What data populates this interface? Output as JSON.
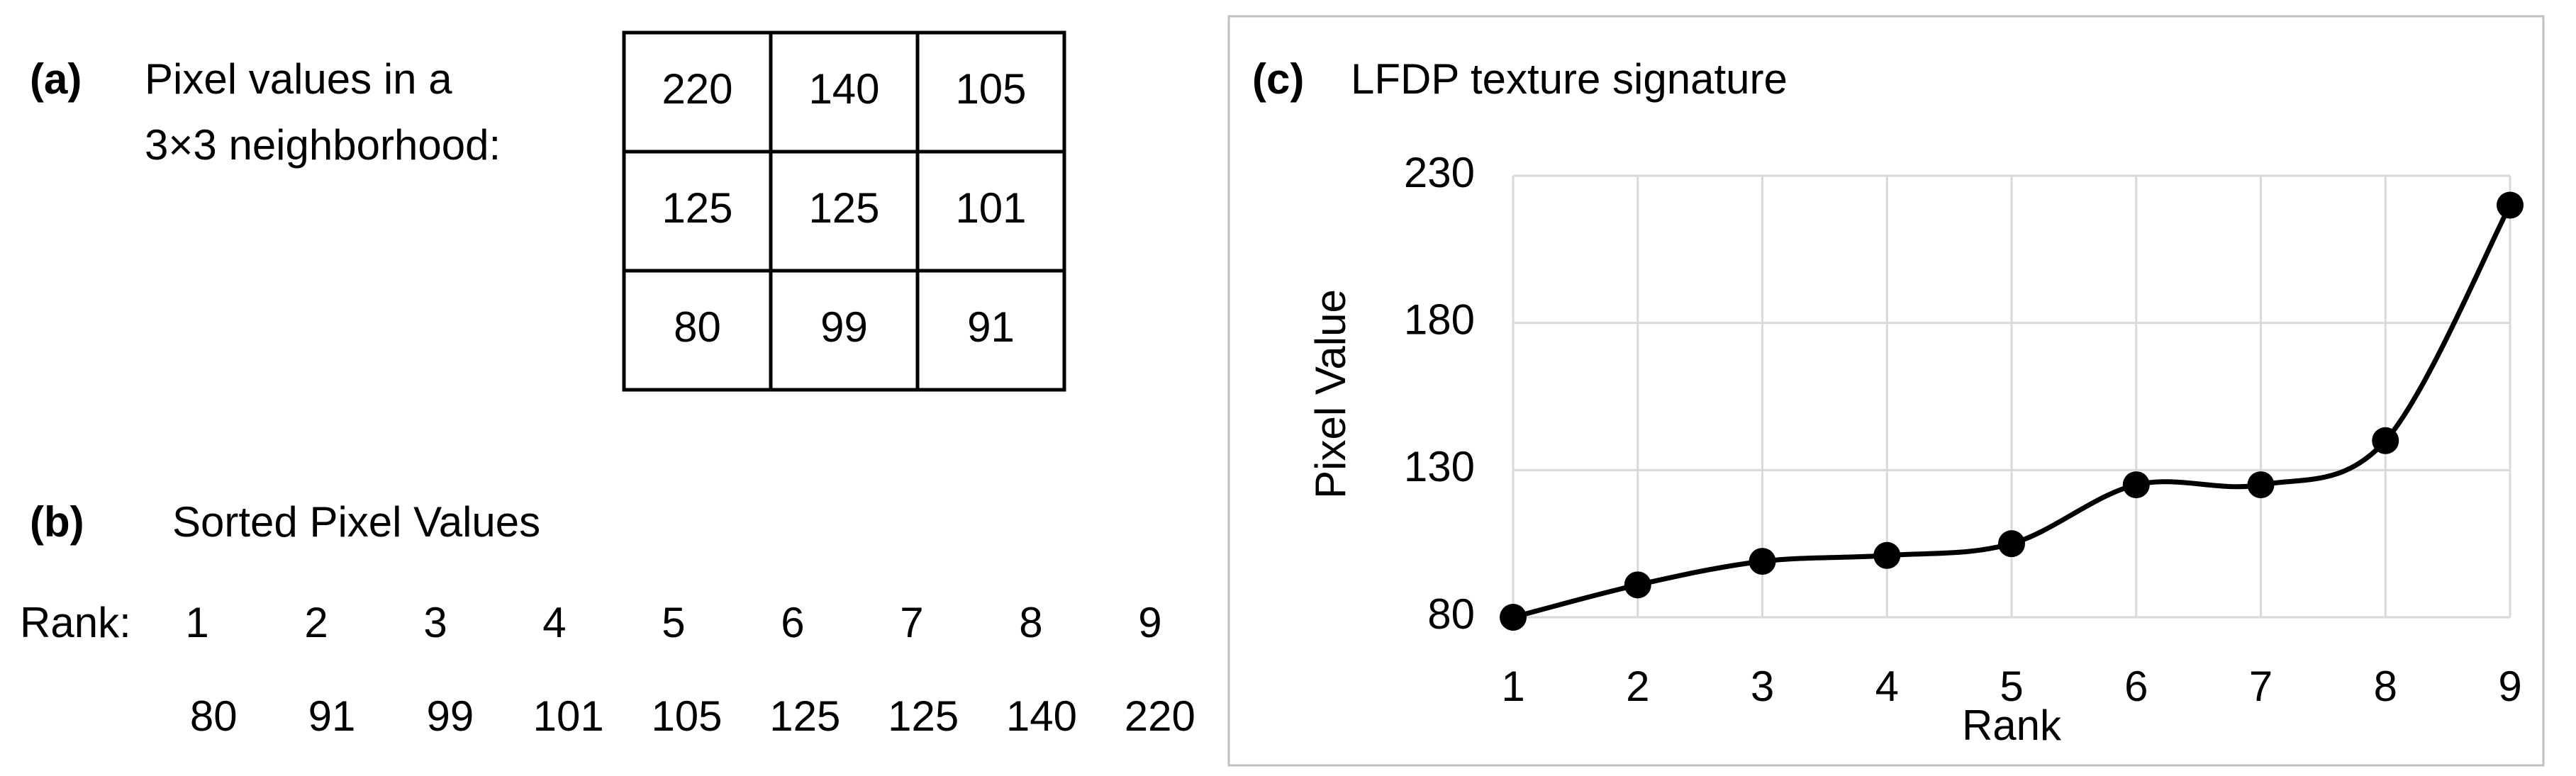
{
  "panel_a": {
    "label": "(a)",
    "title_lines": [
      "Pixel values in a",
      "3×3 neighborhood:"
    ],
    "grid": [
      [
        220,
        140,
        105
      ],
      [
        125,
        125,
        101
      ],
      [
        80,
        99,
        91
      ]
    ]
  },
  "panel_b": {
    "label": "(b)",
    "title": "Sorted Pixel Values",
    "rank_label": "Rank:",
    "ranks": [
      1,
      2,
      3,
      4,
      5,
      6,
      7,
      8,
      9
    ],
    "values": [
      80,
      91,
      99,
      101,
      105,
      125,
      125,
      140,
      220
    ]
  },
  "chart_data": {
    "type": "line",
    "panel_label": "(c)",
    "title": "LFDP texture signature",
    "x_label": "Rank",
    "y_label": "Pixel Value",
    "x": [
      1,
      2,
      3,
      4,
      5,
      6,
      7,
      8,
      9
    ],
    "series": [
      {
        "color": "#000000",
        "values": [
          80,
          91,
          99,
          101,
          105,
          125,
          125,
          140,
          220
        ]
      }
    ],
    "xlim": [
      1,
      9
    ],
    "xticks": [
      1,
      2,
      3,
      4,
      5,
      6,
      7,
      8,
      9
    ],
    "ylim": [
      80,
      230
    ],
    "yticks": [
      80,
      130,
      180,
      230
    ],
    "grid": true,
    "smooth": true
  }
}
